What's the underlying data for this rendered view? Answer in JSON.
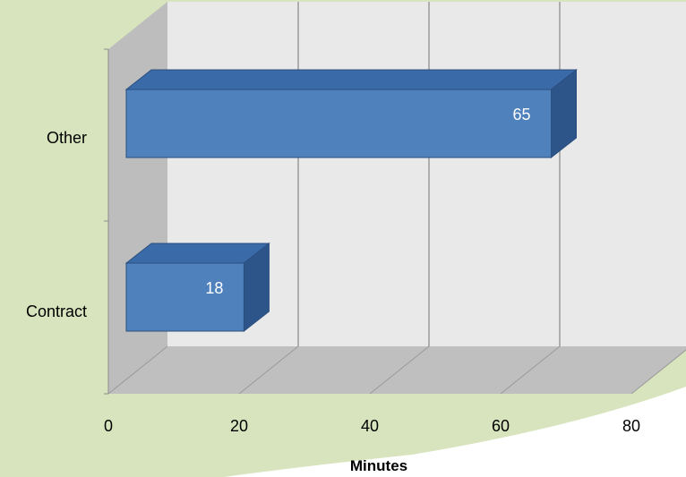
{
  "chart_data": {
    "type": "bar",
    "orientation": "horizontal",
    "style": "3d-clustered-bar",
    "categories": [
      "Contract",
      "Other"
    ],
    "values": [
      18,
      65
    ],
    "data_labels": [
      "18",
      "65"
    ],
    "xlabel": "Minutes",
    "ylabel": "",
    "title": "",
    "xlim": [
      0,
      80
    ],
    "x_ticks": [
      "0",
      "20",
      "40",
      "60",
      "80"
    ],
    "grid": true,
    "legend": "none"
  },
  "colors": {
    "background_green": "#d7e4bd",
    "bar_front": "#4f81bd",
    "bar_top": "#3a6ba8",
    "bar_side": "#2e558a",
    "back_wall": "#e9e9e9",
    "side_wall": "#bdbdbd",
    "floor": "#bfbfbf",
    "gridline": "#9a9a9a",
    "label_text": "#000000",
    "data_label_text": "#ffffff"
  }
}
